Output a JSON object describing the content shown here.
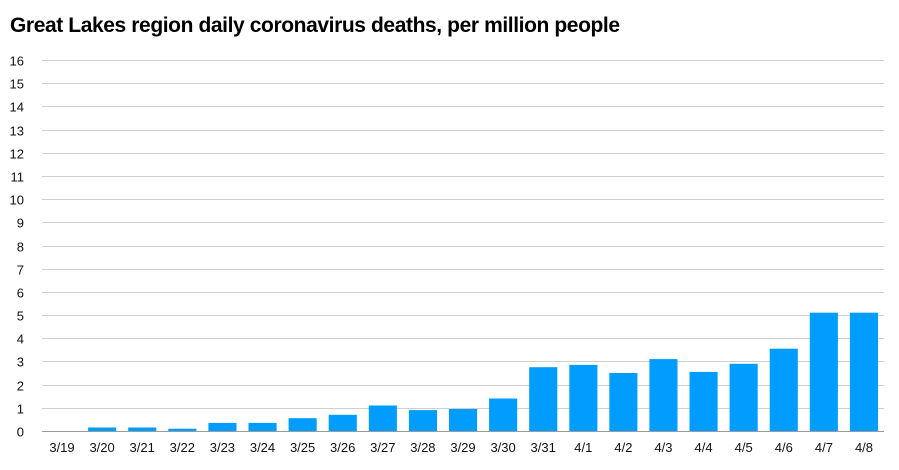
{
  "chart_data": {
    "type": "bar",
    "title": "Great Lakes region daily coronavirus deaths, per million people",
    "xlabel": "",
    "ylabel": "",
    "categories": [
      "3/19",
      "3/20",
      "3/21",
      "3/22",
      "3/23",
      "3/24",
      "3/25",
      "3/26",
      "3/27",
      "3/28",
      "3/29",
      "3/30",
      "3/31",
      "4/1",
      "4/2",
      "4/3",
      "4/4",
      "4/5",
      "4/6",
      "4/7",
      "4/8"
    ],
    "values": [
      0,
      0.15,
      0.15,
      0.1,
      0.35,
      0.35,
      0.55,
      0.7,
      1.1,
      0.9,
      0.95,
      1.4,
      2.75,
      2.85,
      2.5,
      3.1,
      2.55,
      2.9,
      3.55,
      5.1,
      5.1
    ],
    "ylim": [
      0,
      16
    ],
    "yticks": [
      0,
      1,
      2,
      3,
      4,
      5,
      6,
      7,
      8,
      9,
      10,
      11,
      12,
      13,
      14,
      15,
      16
    ],
    "grid": true,
    "legend": "none",
    "bar_color": "#009dff"
  }
}
